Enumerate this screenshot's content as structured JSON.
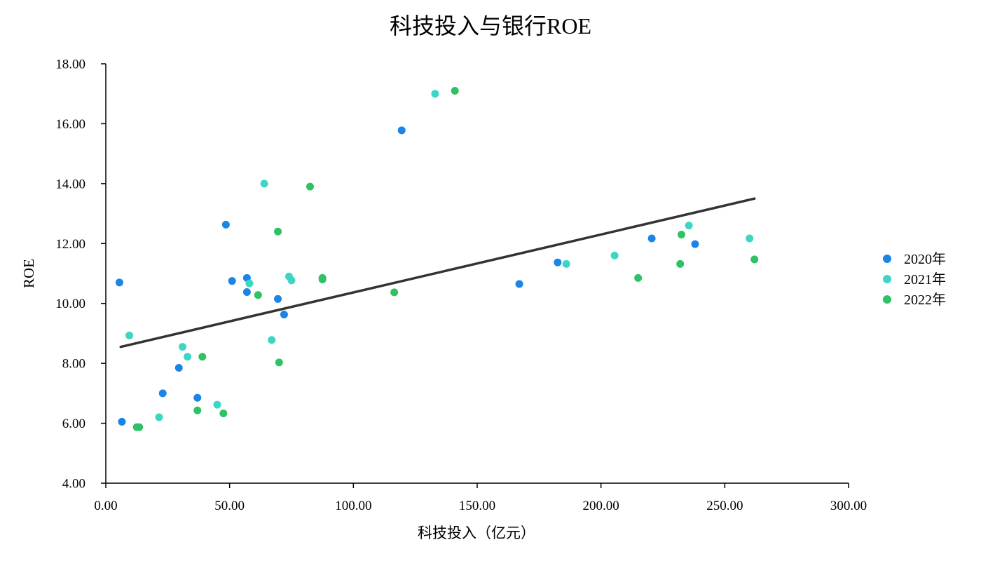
{
  "chart_data": {
    "type": "scatter",
    "title": "科技投入与银行ROE",
    "xlabel": "科技投入（亿元）",
    "ylabel": "ROE",
    "xlim": [
      0,
      300
    ],
    "ylim": [
      4,
      18
    ],
    "xticks": [
      "0.00",
      "50.00",
      "100.00",
      "150.00",
      "200.00",
      "250.00",
      "300.00"
    ],
    "yticks": [
      "4.00",
      "6.00",
      "8.00",
      "10.00",
      "12.00",
      "14.00",
      "16.00",
      "18.00"
    ],
    "grid": false,
    "legend_position": "right",
    "series": [
      {
        "name": "2020年",
        "color": "#1a85e6",
        "points": [
          [
            5.5,
            10.7
          ],
          [
            6.5,
            6.05
          ],
          [
            23,
            7.0
          ],
          [
            29.5,
            7.85
          ],
          [
            37,
            6.85
          ],
          [
            48.5,
            12.63
          ],
          [
            51,
            10.75
          ],
          [
            57,
            10.85
          ],
          [
            57,
            10.38
          ],
          [
            69.5,
            10.15
          ],
          [
            72,
            9.63
          ],
          [
            119.5,
            15.78
          ],
          [
            167,
            10.65
          ],
          [
            182.5,
            11.37
          ],
          [
            220.5,
            12.17
          ],
          [
            238,
            11.98
          ]
        ]
      },
      {
        "name": "2021年",
        "color": "#3dd6c4",
        "points": [
          [
            9.5,
            8.93
          ],
          [
            21.5,
            6.2
          ],
          [
            31,
            8.55
          ],
          [
            33,
            8.22
          ],
          [
            45,
            6.62
          ],
          [
            58,
            10.67
          ],
          [
            64,
            14.0
          ],
          [
            67,
            8.78
          ],
          [
            74,
            10.9
          ],
          [
            75,
            10.77
          ],
          [
            133,
            17.0
          ],
          [
            186,
            11.32
          ],
          [
            205.5,
            11.6
          ],
          [
            235.5,
            12.6
          ],
          [
            260,
            12.17
          ]
        ]
      },
      {
        "name": "2022年",
        "color": "#2ec264",
        "points": [
          [
            12.5,
            5.87
          ],
          [
            13.5,
            5.87
          ],
          [
            37,
            6.43
          ],
          [
            39,
            8.22
          ],
          [
            47.5,
            6.33
          ],
          [
            61.5,
            10.28
          ],
          [
            69.5,
            12.4
          ],
          [
            70,
            8.03
          ],
          [
            82.5,
            13.9
          ],
          [
            87.5,
            10.85
          ],
          [
            87.5,
            10.8
          ],
          [
            116.5,
            10.37
          ],
          [
            141,
            17.1
          ],
          [
            215,
            10.85
          ],
          [
            232,
            11.32
          ],
          [
            232.5,
            12.3
          ],
          [
            262,
            11.47
          ]
        ]
      }
    ],
    "trendline": {
      "color": "#333333",
      "x": [
        6,
        262
      ],
      "y": [
        8.55,
        13.5
      ]
    }
  }
}
